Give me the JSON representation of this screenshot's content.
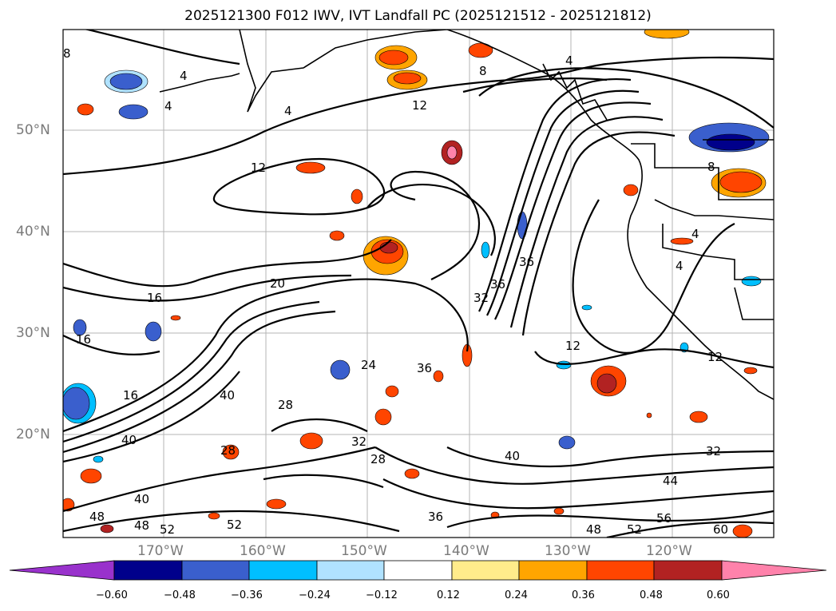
{
  "title": "2025121300 F012 IWV, IVT Landfall PC (2025121512 - 2025121812)",
  "lat_labels": [
    "50°N",
    "40°N",
    "30°N",
    "20°N"
  ],
  "lon_labels": [
    "170°W",
    "160°W",
    "150°W",
    "140°W",
    "130°W",
    "120°W"
  ],
  "colorbar": {
    "ticks": [
      "−0.60",
      "−0.48",
      "−0.36",
      "−0.24",
      "−0.12",
      "0.12",
      "0.24",
      "0.36",
      "0.48",
      "0.60"
    ],
    "colors": [
      "#9932cc",
      "#00008b",
      "#3a5fcd",
      "#00bfff",
      "#b0e2ff",
      "#ffffff",
      "#ffec8b",
      "#ffa500",
      "#ff4500",
      "#b22222",
      "#ff82ab"
    ]
  },
  "contour_labels": [
    "4",
    "4",
    "4",
    "4",
    "8",
    "8",
    "12",
    "12",
    "12",
    "16",
    "16",
    "16",
    "20",
    "24",
    "28",
    "28",
    "32",
    "32",
    "32",
    "36",
    "36",
    "36",
    "36",
    "40",
    "40",
    "40",
    "40",
    "44",
    "48",
    "48",
    "48",
    "52",
    "52",
    "52",
    "56",
    "60",
    "4",
    "8",
    "4",
    "28",
    "12"
  ]
}
